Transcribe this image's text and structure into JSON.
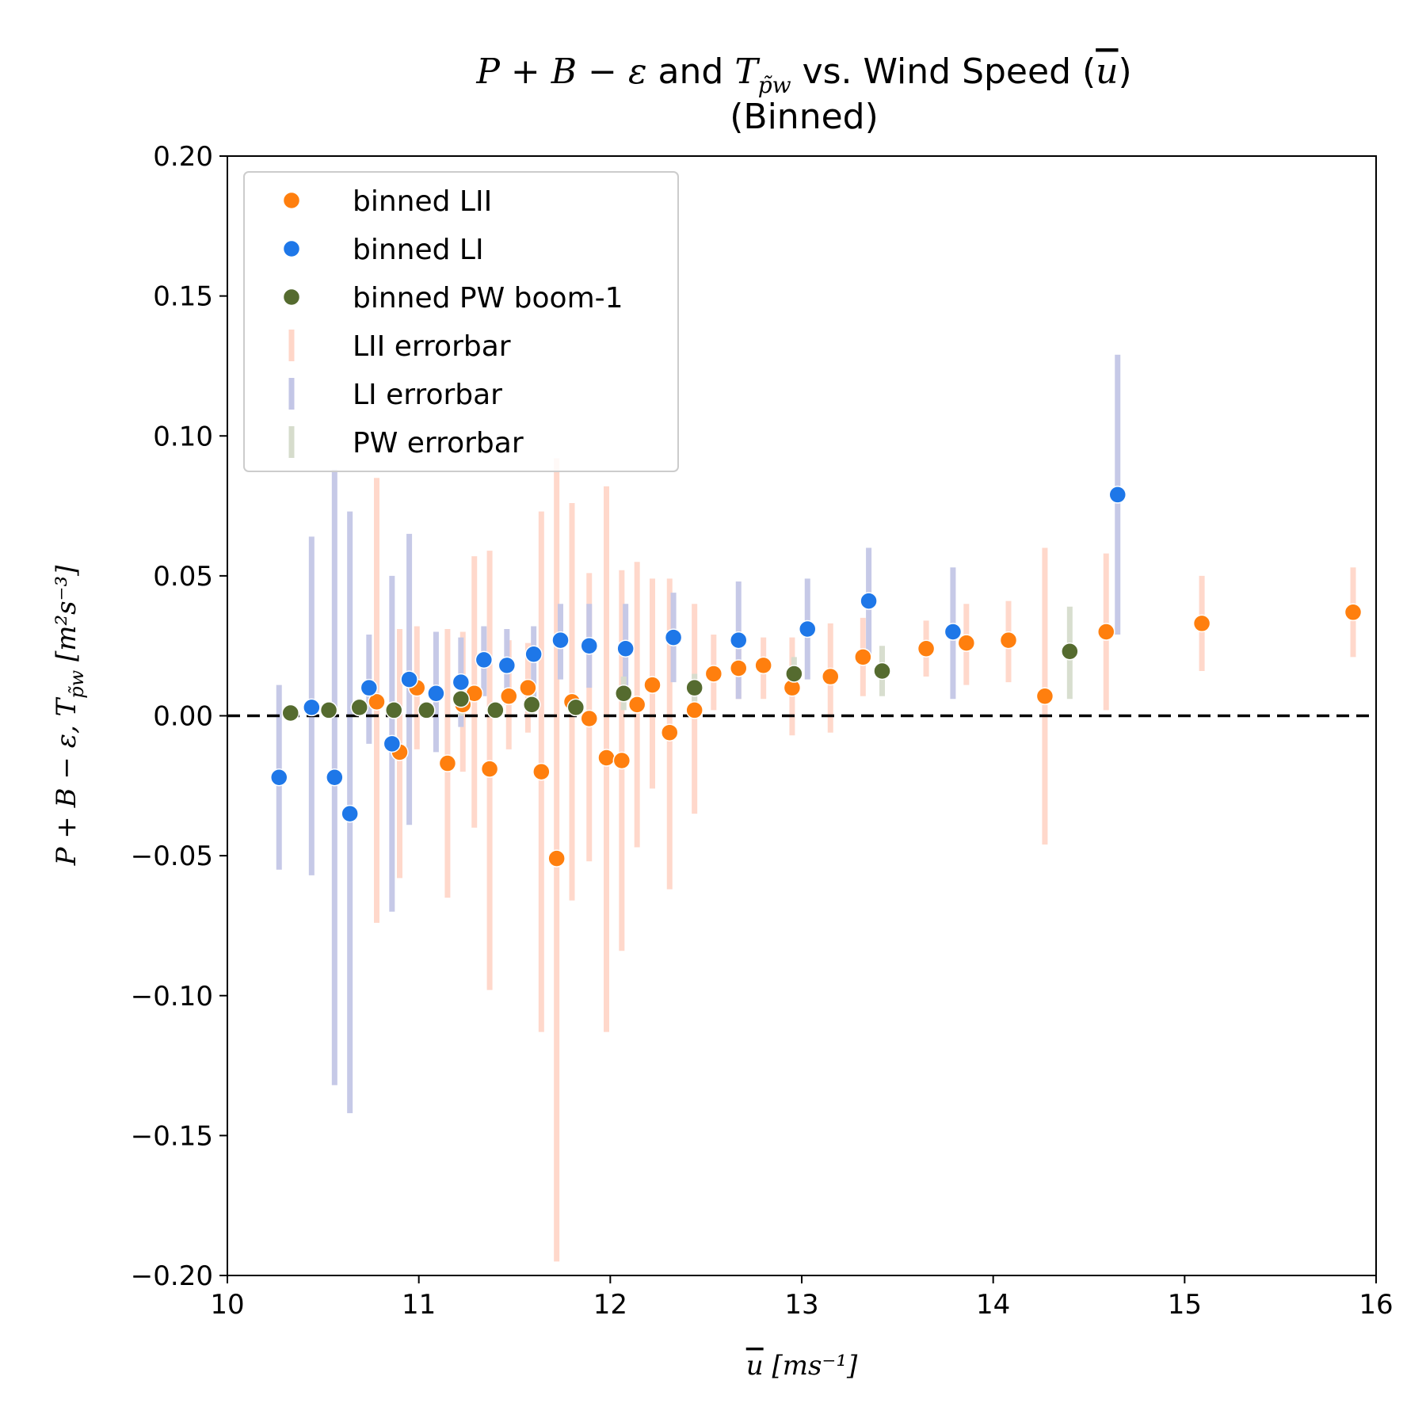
{
  "chart_data": {
    "type": "scatter",
    "title": {
      "line1_prefix": "P + B − ε",
      "line1_and": " and ",
      "line1_T": "T",
      "line1_T_sub": "p̃w",
      "line1_mid": " vs. Wind Speed (",
      "line1_u": "u",
      "line1_end": ")",
      "line2": "(Binned)"
    },
    "xlabel": {
      "u": "u",
      "rest": " [ms⁻¹]"
    },
    "ylabel": {
      "a": "P + B − ε, ",
      "T": "T",
      "T_sub": "p̃w",
      "rest": " [m²s⁻³]"
    },
    "xlim": [
      10,
      16
    ],
    "ylim": [
      -0.2,
      0.2
    ],
    "xticks": [
      10,
      11,
      12,
      13,
      14,
      15,
      16
    ],
    "xtick_labels": [
      "10",
      "11",
      "12",
      "13",
      "14",
      "15",
      "16"
    ],
    "yticks": [
      -0.2,
      -0.15,
      -0.1,
      -0.05,
      0.0,
      0.05,
      0.1,
      0.15,
      0.2
    ],
    "ytick_labels": [
      "−0.20",
      "−0.15",
      "−0.10",
      "−0.05",
      "0.00",
      "0.05",
      "0.10",
      "0.15",
      "0.20"
    ],
    "reference_line": {
      "y": 0,
      "style": "dashed",
      "color": "#000000"
    },
    "legend": {
      "placement": "upper-left",
      "entries": [
        {
          "label": "binned LII",
          "marker": "dot",
          "color": "#ff7f0e"
        },
        {
          "label": "binned LI",
          "marker": "dot",
          "color": "#1e77e8"
        },
        {
          "label": "binned PW boom-1",
          "marker": "dot",
          "color": "#556b2f"
        },
        {
          "label": "LII errorbar",
          "marker": "bar",
          "color": "#ffd6c8"
        },
        {
          "label": "LI errorbar",
          "marker": "bar",
          "color": "#c3c6e6"
        },
        {
          "label": "PW errorbar",
          "marker": "bar",
          "color": "#d6dccc"
        }
      ]
    },
    "series": [
      {
        "name": "binned LII",
        "color": "#ff7f0e",
        "errcolor": "#ffd6c8",
        "points": [
          [
            10.78,
            0.005,
            -0.074,
            0.085
          ],
          [
            10.9,
            -0.013,
            -0.058,
            0.031
          ],
          [
            10.99,
            0.01,
            -0.012,
            0.032
          ],
          [
            11.15,
            -0.017,
            -0.065,
            0.031
          ],
          [
            11.23,
            0.004,
            -0.02,
            0.03
          ],
          [
            11.29,
            0.008,
            -0.04,
            0.057
          ],
          [
            11.37,
            -0.019,
            -0.098,
            0.059
          ],
          [
            11.47,
            0.007,
            -0.012,
            0.027
          ],
          [
            11.57,
            0.01,
            -0.006,
            0.026
          ],
          [
            11.64,
            -0.02,
            -0.113,
            0.073
          ],
          [
            11.72,
            -0.051,
            -0.195,
            0.092
          ],
          [
            11.8,
            0.005,
            -0.066,
            0.076
          ],
          [
            11.89,
            -0.001,
            -0.052,
            0.051
          ],
          [
            11.98,
            -0.015,
            -0.113,
            0.082
          ],
          [
            12.06,
            -0.016,
            -0.084,
            0.052
          ],
          [
            12.14,
            0.004,
            -0.047,
            0.055
          ],
          [
            12.22,
            0.011,
            -0.026,
            0.049
          ],
          [
            12.31,
            -0.006,
            -0.062,
            0.049
          ],
          [
            12.44,
            0.002,
            -0.035,
            0.04
          ],
          [
            12.54,
            0.015,
            0.002,
            0.029
          ],
          [
            12.67,
            0.017,
            0.006,
            0.027
          ],
          [
            12.8,
            0.018,
            0.006,
            0.028
          ],
          [
            12.95,
            0.01,
            -0.007,
            0.028
          ],
          [
            13.15,
            0.014,
            -0.006,
            0.033
          ],
          [
            13.32,
            0.021,
            0.007,
            0.035
          ],
          [
            13.65,
            0.024,
            0.014,
            0.034
          ],
          [
            13.86,
            0.026,
            0.011,
            0.04
          ],
          [
            14.08,
            0.027,
            0.012,
            0.041
          ],
          [
            14.27,
            0.007,
            -0.046,
            0.06
          ],
          [
            14.59,
            0.03,
            0.002,
            0.058
          ],
          [
            15.09,
            0.033,
            0.016,
            0.05
          ],
          [
            15.88,
            0.037,
            0.021,
            0.053
          ]
        ]
      },
      {
        "name": "binned LI",
        "color": "#1e77e8",
        "errcolor": "#c3c6e6",
        "points": [
          [
            10.27,
            -0.022,
            -0.055,
            0.011
          ],
          [
            10.44,
            0.003,
            -0.057,
            0.064
          ],
          [
            10.56,
            -0.022,
            -0.132,
            0.088
          ],
          [
            10.64,
            -0.035,
            -0.142,
            0.073
          ],
          [
            10.74,
            0.01,
            -0.01,
            0.029
          ],
          [
            10.86,
            -0.01,
            -0.07,
            0.05
          ],
          [
            10.95,
            0.013,
            -0.039,
            0.065
          ],
          [
            11.09,
            0.008,
            -0.013,
            0.03
          ],
          [
            11.22,
            0.012,
            -0.004,
            0.028
          ],
          [
            11.34,
            0.02,
            0.007,
            0.032
          ],
          [
            11.46,
            0.018,
            0.004,
            0.031
          ],
          [
            11.6,
            0.022,
            0.003,
            0.032
          ],
          [
            11.74,
            0.027,
            0.013,
            0.04
          ],
          [
            11.89,
            0.025,
            0.01,
            0.04
          ],
          [
            12.08,
            0.024,
            0.009,
            0.04
          ],
          [
            12.33,
            0.028,
            0.012,
            0.044
          ],
          [
            12.67,
            0.027,
            0.006,
            0.048
          ],
          [
            13.03,
            0.031,
            0.013,
            0.049
          ],
          [
            13.35,
            0.041,
            0.022,
            0.06
          ],
          [
            13.79,
            0.03,
            0.006,
            0.053
          ],
          [
            14.65,
            0.079,
            0.029,
            0.129
          ]
        ]
      },
      {
        "name": "binned PW boom-1",
        "color": "#556b2f",
        "errcolor": "#d6dccc",
        "points": [
          [
            10.33,
            0.001,
            0.0,
            0.002
          ],
          [
            10.53,
            0.002,
            0.0,
            0.004
          ],
          [
            10.69,
            0.003,
            0.0,
            0.006
          ],
          [
            10.87,
            0.002,
            0.0,
            0.005
          ],
          [
            11.04,
            0.002,
            0.0,
            0.005
          ],
          [
            11.22,
            0.006,
            0.0,
            0.012
          ],
          [
            11.4,
            0.002,
            0.0,
            0.005
          ],
          [
            11.59,
            0.004,
            0.0,
            0.009
          ],
          [
            11.82,
            0.003,
            0.0,
            0.007
          ],
          [
            12.07,
            0.008,
            0.002,
            0.014
          ],
          [
            12.44,
            0.01,
            0.004,
            0.015
          ],
          [
            12.96,
            0.015,
            0.01,
            0.021
          ],
          [
            13.42,
            0.016,
            0.007,
            0.025
          ],
          [
            14.4,
            0.023,
            0.006,
            0.039
          ]
        ]
      }
    ]
  }
}
